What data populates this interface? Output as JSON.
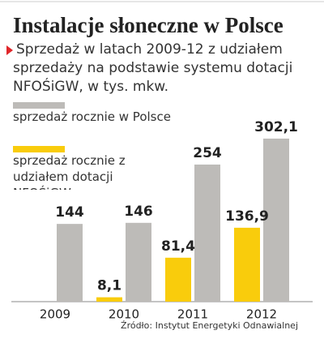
{
  "chart_data": {
    "type": "bar",
    "title": "Instalacje słoneczne w Polsce",
    "subtitle": "Sprzedaż w latach 2009-12 z udziałem sprzedaży na podstawie systemu dotacji NFOŚiGW, w tys. mkw.",
    "source": "Źródło: Instytut Energetyki Odnawialnej",
    "categories": [
      "2009",
      "2010",
      "2011",
      "2012"
    ],
    "series": [
      {
        "name": "sprzedaż rocznie w Polsce",
        "color": "#bdbbb8",
        "values": [
          144,
          146,
          254,
          302.1
        ],
        "value_labels": [
          "144",
          "146",
          "254",
          "302,1"
        ]
      },
      {
        "name": "sprzedaż rocznie z udziałem dotacji NFOŚiGW",
        "color": "#f9cc0c",
        "values": [
          null,
          8.1,
          81.4,
          136.9
        ],
        "value_labels": [
          null,
          "8,1",
          "81,4",
          "136,9"
        ]
      }
    ],
    "ylim": [
      0,
      320
    ]
  }
}
